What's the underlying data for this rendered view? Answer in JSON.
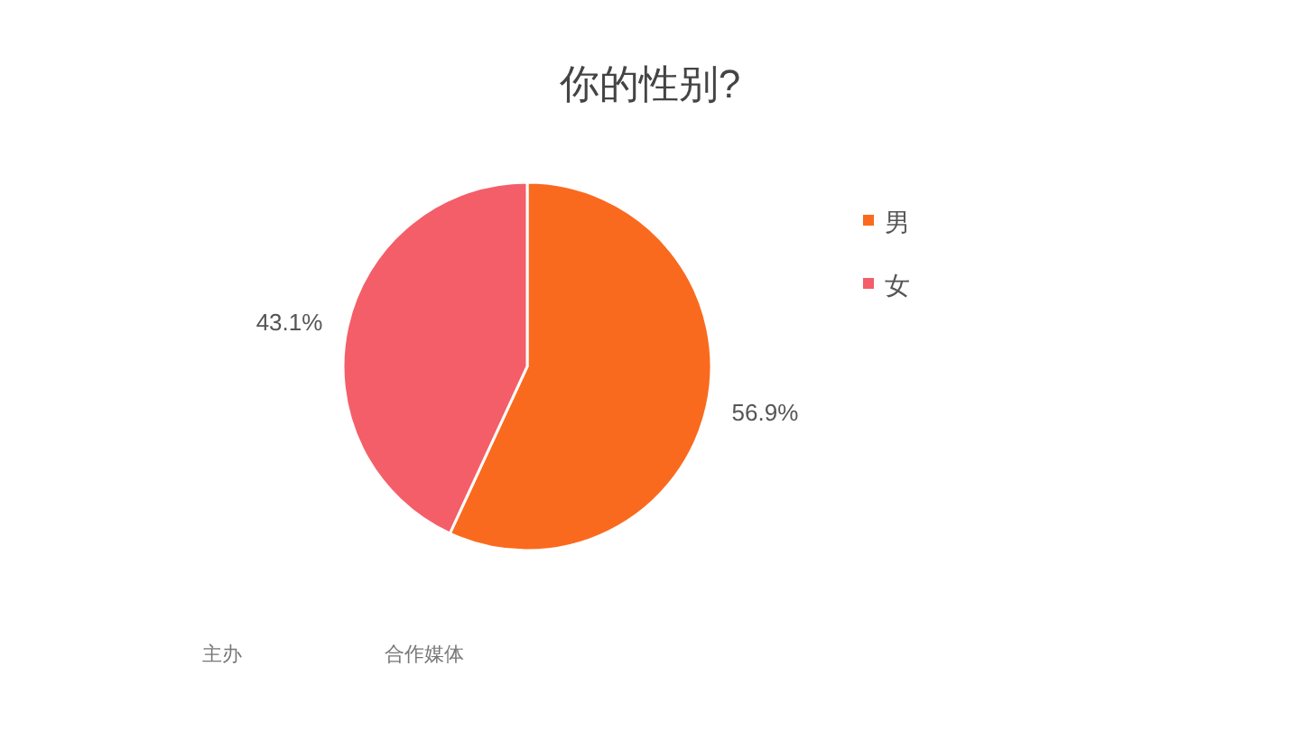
{
  "chart_data": {
    "type": "pie",
    "title": "你的性别?",
    "categories": [
      "男",
      "女"
    ],
    "values": [
      56.9,
      43.1
    ],
    "colors": [
      "#fa6a1e",
      "#f45e68"
    ],
    "value_labels": [
      "56.9%",
      "43.1%"
    ],
    "legend": "right",
    "annotations": [
      "主办",
      "合作媒体"
    ]
  }
}
